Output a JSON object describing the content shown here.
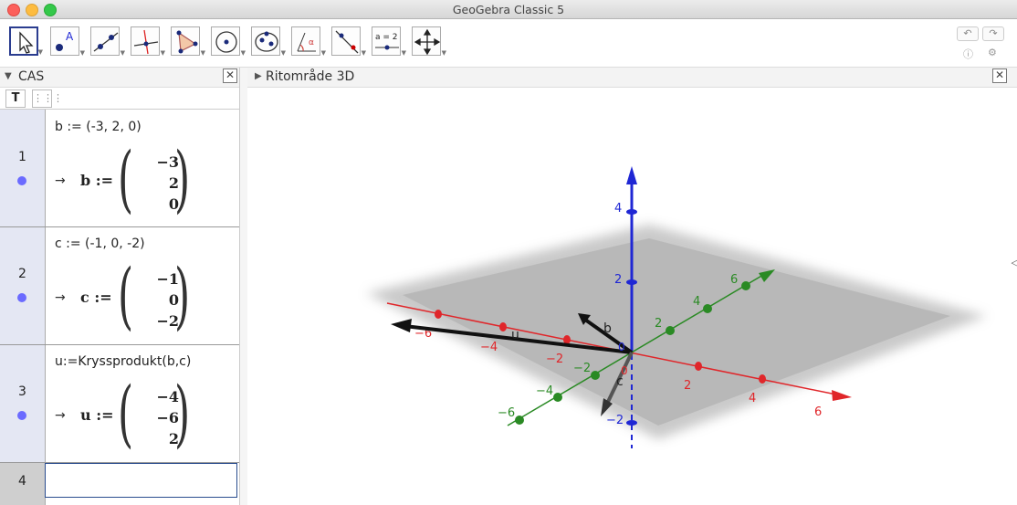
{
  "window": {
    "title": "GeoGebra Classic 5"
  },
  "toolbar": {
    "tools": [
      {
        "name": "move-tool",
        "icon": "arrow-cursor-icon"
      },
      {
        "name": "point-tool",
        "icon": "point-icon"
      },
      {
        "name": "line-tool",
        "icon": "line-icon"
      },
      {
        "name": "perpendicular-line-tool",
        "icon": "perpendicular-icon"
      },
      {
        "name": "polygon-tool",
        "icon": "polygon-icon"
      },
      {
        "name": "circle-tool",
        "icon": "circle-icon"
      },
      {
        "name": "conic-tool",
        "icon": "ellipse-icon"
      },
      {
        "name": "angle-tool",
        "icon": "angle-icon"
      },
      {
        "name": "reflect-tool",
        "icon": "reflect-icon"
      },
      {
        "name": "slider-tool",
        "icon": "slider-icon",
        "label": "a = 2"
      },
      {
        "name": "move-graphics-tool",
        "icon": "move-graphics-icon"
      }
    ],
    "undo_icon": "undo-icon",
    "redo_icon": "redo-icon",
    "help_icon": "help-icon",
    "settings_icon": "gear-icon"
  },
  "cas": {
    "title": "CAS",
    "style_text_button": "T",
    "rows": [
      {
        "num": "1",
        "input": "b := (-3, 2, 0)",
        "arrow": "→",
        "var": "b :=",
        "values": [
          "−3",
          "2",
          "0"
        ]
      },
      {
        "num": "2",
        "input": "c := (-1, 0, -2)",
        "arrow": "→",
        "var": "c :=",
        "values": [
          "−1",
          "0",
          "−2"
        ]
      },
      {
        "num": "3",
        "input": "u:=Kryssprodukt(b,c)",
        "arrow": "→",
        "var": "u :=",
        "values": [
          "−4",
          "−6",
          "2"
        ]
      }
    ],
    "input_row_num": "4"
  },
  "graphics3d": {
    "title": "Ritområde 3D",
    "axis_colors": {
      "x": "#e0262a",
      "y": "#2a8a24",
      "z": "#1f27d4"
    },
    "x_ticks": [
      "−6",
      "−4",
      "−2",
      "2",
      "4",
      "6"
    ],
    "y_ticks": [
      "−6",
      "−4",
      "−2",
      "2",
      "4",
      "6"
    ],
    "z_ticks": [
      "4",
      "2",
      "−2"
    ],
    "vector_labels": {
      "u": "u",
      "b": "b",
      "c": "c",
      "origin": "0"
    }
  }
}
